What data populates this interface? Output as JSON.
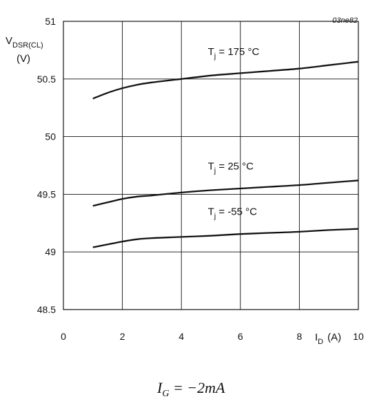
{
  "figure_id": "03ne82",
  "caption": "I_G = −2mA",
  "caption_parts": {
    "main": "I",
    "sub": "G",
    "rest": " = −2mA"
  },
  "chart_data": {
    "type": "line",
    "title": "",
    "xlabel": "I_D (A)",
    "xlabel_parts": {
      "main": "I",
      "sub": "D",
      "unit": "(A)"
    },
    "ylabel": "V_DSR(CL) (V)",
    "ylabel_parts": {
      "main": "V",
      "sub": "DSR(CL)",
      "unit": "(V)"
    },
    "xlim": [
      0,
      10
    ],
    "ylim": [
      48.5,
      51
    ],
    "xticks": [
      0,
      2,
      4,
      6,
      8,
      10
    ],
    "yticks": [
      48.5,
      49,
      49.5,
      50,
      50.5,
      51
    ],
    "xtick_labels": [
      "0",
      "2",
      "4",
      "6",
      "8",
      "10"
    ],
    "ytick_labels": [
      "48.5",
      "49",
      "49.5",
      "50",
      "50.5",
      "51"
    ],
    "grid": true,
    "series": [
      {
        "name": "T_j = 175 °C",
        "label_parts": {
          "main": "T",
          "sub": "j",
          "rest": " = 175 °C"
        },
        "x": [
          1,
          1.5,
          2,
          2.5,
          3,
          4,
          5,
          6,
          7,
          8,
          9,
          10
        ],
        "y": [
          50.33,
          50.38,
          50.42,
          50.45,
          50.47,
          50.5,
          50.53,
          50.55,
          50.57,
          50.59,
          50.62,
          50.65
        ]
      },
      {
        "name": "T_j = 25 °C",
        "label_parts": {
          "main": "T",
          "sub": "j",
          "rest": " = 25 °C"
        },
        "x": [
          1,
          1.5,
          2,
          2.5,
          3,
          4,
          5,
          6,
          7,
          8,
          9,
          10
        ],
        "y": [
          49.4,
          49.43,
          49.46,
          49.48,
          49.49,
          49.515,
          49.535,
          49.55,
          49.565,
          49.58,
          49.6,
          49.62
        ]
      },
      {
        "name": "T_j = -55 °C",
        "label_parts": {
          "main": "T",
          "sub": "j",
          "rest": " = -55 °C"
        },
        "x": [
          1,
          1.5,
          2,
          2.5,
          3,
          4,
          5,
          6,
          7,
          8,
          9,
          10
        ],
        "y": [
          49.04,
          49.065,
          49.09,
          49.11,
          49.12,
          49.13,
          49.14,
          49.155,
          49.165,
          49.175,
          49.19,
          49.2
        ]
      }
    ],
    "line_color": "#111111",
    "grid_color": "#111111"
  }
}
